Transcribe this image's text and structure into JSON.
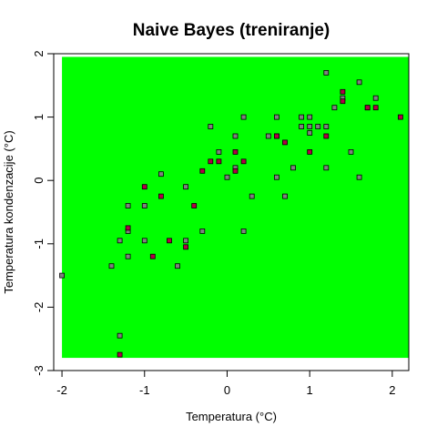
{
  "chart_data": {
    "type": "scatter",
    "title": "Naive Bayes (treniranje)",
    "xlabel": "Temperatura (°C)",
    "ylabel": "Temperatura kondenzacije (°C)",
    "xlim": [
      -2.1,
      2.2
    ],
    "ylim": [
      -3.0,
      2.0
    ],
    "x_ticks": [
      -2,
      -1,
      0,
      1,
      2
    ],
    "y_ticks": [
      -3,
      -2,
      -1,
      0,
      1,
      2
    ],
    "x_tick_labels": [
      "-2",
      "-1",
      "0",
      "1",
      "2"
    ],
    "y_tick_labels": [
      "-3",
      "-2",
      "-1",
      "0",
      "1",
      "2"
    ],
    "grid": false,
    "region": {
      "class": "green",
      "color": "#00ff00",
      "x": [
        -2.0,
        2.2
      ],
      "y": [
        -2.8,
        1.95
      ]
    },
    "series": [
      {
        "color": "#808080",
        "marker": "square",
        "x": [
          -2.0,
          -1.4,
          -1.3,
          -1.3,
          -1.2,
          -1.2,
          -1.2,
          -1.0,
          -1.0,
          -0.8,
          -0.6,
          -0.5,
          -0.5,
          -0.3,
          -0.2,
          -0.1,
          0.0,
          0.1,
          0.1,
          0.2,
          0.2,
          0.3,
          0.5,
          0.6,
          0.6,
          0.6,
          0.7,
          0.8,
          0.9,
          0.9,
          1.0,
          1.0,
          1.0,
          1.1,
          1.2,
          1.2,
          1.2,
          1.3,
          1.4,
          1.5,
          1.6,
          1.6,
          1.7,
          1.8
        ],
        "y": [
          -1.5,
          -1.35,
          -2.45,
          -0.95,
          -1.2,
          -0.8,
          -0.4,
          -0.95,
          -0.4,
          0.1,
          -1.35,
          -0.95,
          -0.1,
          -0.8,
          0.85,
          0.45,
          0.05,
          0.2,
          0.7,
          -0.8,
          1.0,
          -0.25,
          0.7,
          1.0,
          0.7,
          0.05,
          -0.25,
          0.2,
          0.85,
          1.0,
          0.85,
          0.75,
          1.0,
          0.85,
          0.2,
          0.85,
          1.7,
          1.15,
          1.3,
          0.45,
          1.55,
          0.05,
          1.15,
          1.3
        ]
      },
      {
        "color": "#b30047",
        "marker": "square",
        "x": [
          -1.3,
          -1.2,
          -1.0,
          -0.9,
          -0.8,
          -0.7,
          -0.5,
          -0.4,
          -0.3,
          -0.2,
          -0.1,
          0.1,
          0.1,
          0.2,
          0.6,
          0.7,
          1.0,
          1.2,
          1.4,
          1.4,
          1.7,
          1.8,
          2.1
        ],
        "y": [
          -2.75,
          -0.75,
          -0.1,
          -1.2,
          -0.25,
          -0.95,
          -1.05,
          -0.4,
          0.15,
          0.3,
          0.3,
          0.15,
          0.45,
          0.3,
          0.7,
          0.6,
          0.45,
          0.7,
          1.25,
          1.4,
          1.15,
          1.15,
          1.0
        ]
      }
    ]
  }
}
